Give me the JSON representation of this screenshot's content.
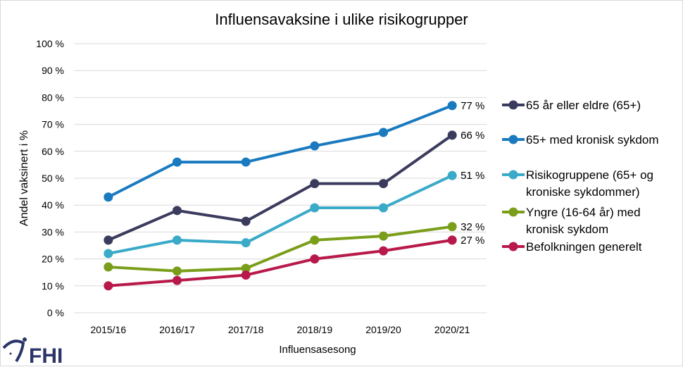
{
  "chart_data": {
    "type": "line",
    "title": "Influensavaksine i ulike risikogrupper",
    "xlabel": "Influensasesong",
    "ylabel": "Andel vaksinert i %",
    "categories": [
      "2015/16",
      "2016/17",
      "2017/18",
      "2018/19",
      "2019/20",
      "2020/21"
    ],
    "ylim": [
      0,
      100
    ],
    "yticks": [
      "0 %",
      "10 %",
      "20 %",
      "30 %",
      "40 %",
      "50 %",
      "60 %",
      "70 %",
      "80 %",
      "90 %",
      "100 %"
    ],
    "grid": true,
    "legend_position": "right",
    "series": [
      {
        "name": "65 år eller eldre (65+)",
        "color": "#3b3b5e",
        "values": [
          27,
          38,
          34,
          48,
          48,
          66
        ],
        "end_label": "66 %"
      },
      {
        "name": "65+ med kronisk sykdom",
        "color": "#1a7abf",
        "values": [
          43,
          56,
          56,
          62,
          67,
          77
        ],
        "end_label": "77 %"
      },
      {
        "name": "Risikogruppene (65+ og kroniske sykdommer)",
        "color": "#3aaac8",
        "values": [
          22,
          27,
          26,
          39,
          39,
          51
        ],
        "end_label": "51 %"
      },
      {
        "name": "Yngre (16-64 år) med kronisk sykdom",
        "color": "#7a9e1a",
        "values": [
          17,
          15.5,
          16.5,
          27,
          28.5,
          32
        ],
        "end_label": "32 %"
      },
      {
        "name": "Befolkningen generelt",
        "color": "#b8194a",
        "values": [
          10,
          12,
          14,
          20,
          23,
          27
        ],
        "end_label": "27 %"
      }
    ],
    "legend_lines": [
      [
        "65 år eller eldre (65+)"
      ],
      [
        "65+ med kronisk sykdom"
      ],
      [
        "Risikogruppene (65+ og",
        "kroniske sykdommer)"
      ],
      [
        "Yngre (16-64 år) med",
        "kronisk sykdom"
      ],
      [
        "Befolkningen generelt"
      ]
    ]
  },
  "logo": {
    "text": "FHI",
    "color": "#2a3468"
  }
}
